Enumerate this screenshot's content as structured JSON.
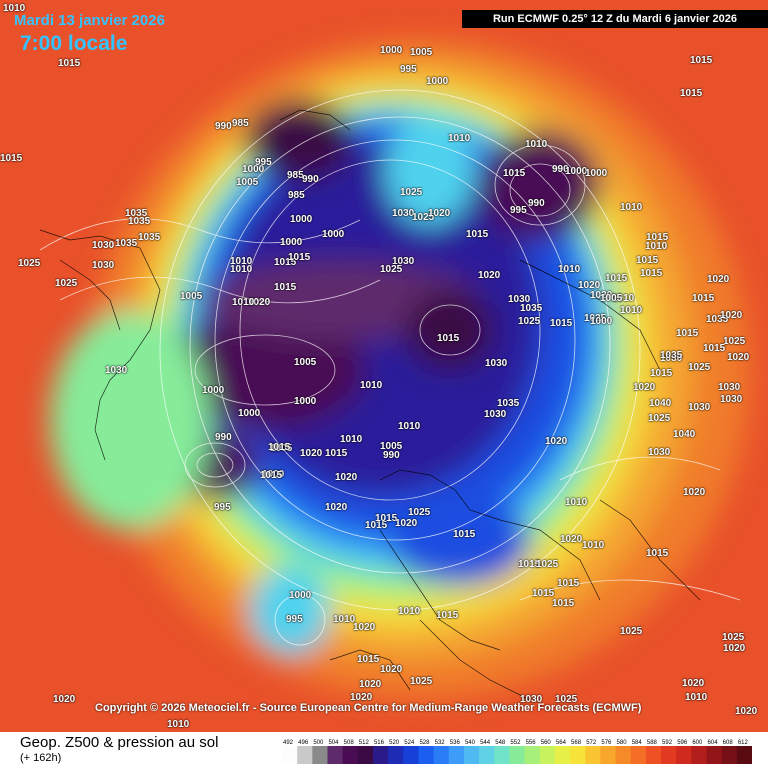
{
  "header": {
    "date": "Mardi 13 janvier 2026",
    "time": "7:00 locale",
    "run": "Run ECMWF 0.25° 12 Z du Mardi 6 janvier 2026"
  },
  "copyright": "Copyright © 2026 Meteociel.fr - Source European Centre for Medium-Range Weather Forecasts (ECMWF)",
  "footer": {
    "title": "Geop. Z500 & pression au sol",
    "subtitle": "(+ 162h)"
  },
  "colorbar": {
    "ticks": [
      "492",
      "496",
      "500",
      "504",
      "508",
      "512",
      "516",
      "520",
      "524",
      "528",
      "532",
      "536",
      "540",
      "544",
      "548",
      "552",
      "556",
      "560",
      "564",
      "568",
      "572",
      "576",
      "580",
      "584",
      "588",
      "592",
      "596",
      "600",
      "604",
      "608",
      "612"
    ],
    "colors": [
      "#fdfdfd",
      "#c9c9c9",
      "#8a8a8a",
      "#5e2a6c",
      "#4a0d54",
      "#3a0a45",
      "#2a1a8a",
      "#1e2bb5",
      "#1740d6",
      "#1c5ef0",
      "#2b7df7",
      "#3e9cf9",
      "#4fb9f2",
      "#5fd2e8",
      "#71e3c8",
      "#86ec9a",
      "#a7f07a",
      "#c9f25f",
      "#e6f047",
      "#f7e33a",
      "#fbc532",
      "#f9a72c",
      "#f78a28",
      "#f46e26",
      "#ee5224",
      "#e23a21",
      "#cf2a1d",
      "#b21e1b",
      "#941519",
      "#770f16",
      "#5a0b12"
    ]
  },
  "pressure_labels": [
    "1015",
    "1015",
    "1010",
    "1015",
    "1015",
    "1025",
    "1025",
    "1035",
    "1035",
    "1030",
    "1035",
    "1035",
    "990",
    "985",
    "1005",
    "1000",
    "995",
    "985",
    "990",
    "985",
    "1000",
    "1000",
    "1030",
    "1015",
    "1010",
    "1010",
    "1015",
    "1005",
    "1020",
    "1015",
    "1000",
    "1005",
    "1010",
    "1000",
    "1000",
    "995",
    "990",
    "1000",
    "1000",
    "1020",
    "1015",
    "1010",
    "1005",
    "1005",
    "1020",
    "1020",
    "1015",
    "1015",
    "1020",
    "1010",
    "990",
    "1000",
    "1005",
    "1000",
    "995",
    "1025",
    "1030",
    "1025",
    "1020",
    "1030",
    "1025",
    "1020",
    "1015",
    "1015",
    "1030",
    "1035",
    "1030",
    "1035",
    "1025",
    "1020",
    "1010",
    "1030",
    "1015",
    "1010",
    "1015",
    "990",
    "995",
    "990",
    "1000",
    "1000",
    "1010",
    "1010",
    "1020",
    "1020",
    "1010",
    "1010",
    "1015",
    "1015",
    "1015",
    "1025",
    "1015",
    "1030",
    "1035",
    "1020",
    "1015",
    "1025",
    "1015",
    "1015",
    "1020",
    "1035",
    "1020",
    "1015",
    "1020",
    "1030",
    "1030",
    "1025",
    "1015",
    "1040",
    "1030",
    "1025",
    "1040",
    "1030",
    "1020",
    "1015",
    "1025",
    "1025",
    "1020",
    "1020",
    "1010",
    "1020",
    "1010",
    "1015",
    "1015",
    "1025",
    "1015",
    "1015",
    "1020",
    "1010",
    "1015",
    "1010",
    "1000",
    "995",
    "1010",
    "1020",
    "1025",
    "1020",
    "1025",
    "1030",
    "1015",
    "1020",
    "1020",
    "1025",
    "1030",
    "1020",
    "1010",
    "1010",
    "1015",
    "1015",
    "1010",
    "1005",
    "1000",
    "1000",
    "1010",
    "1010",
    "1010"
  ]
}
